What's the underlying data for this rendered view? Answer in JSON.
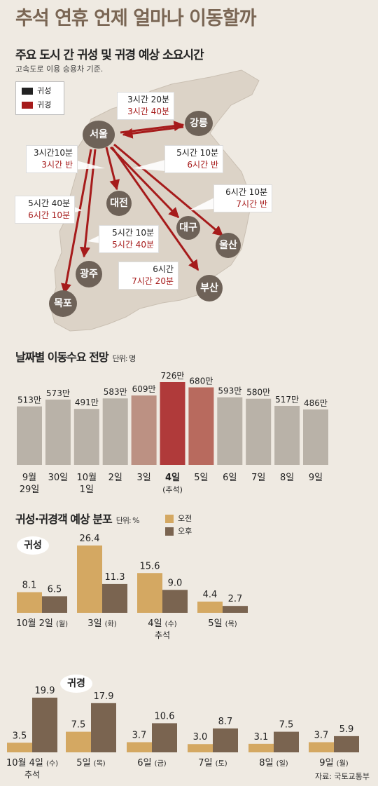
{
  "title": "추석 연휴 언제 얼마나 이동할까",
  "section1": {
    "title": "주요 도시 간 귀성 및 귀경 예상 소요시간",
    "subtitle": "고속도로 이용 승용차 기준.",
    "legend": [
      {
        "label": "귀성",
        "color": "#222222"
      },
      {
        "label": "귀경",
        "color": "#a61b1b"
      }
    ],
    "cities": {
      "seoul": "서울",
      "gangneung": "강릉",
      "daejeon": "대전",
      "daegu": "대구",
      "ulsan": "울산",
      "gwangju": "광주",
      "busan": "부산",
      "mokpo": "목포"
    },
    "routes": [
      {
        "city": "강릉",
        "down": "3시간 20분",
        "up": "3시간 40분"
      },
      {
        "city": "대전",
        "down": "3시간10분",
        "up": "3시간 반"
      },
      {
        "city": "대구",
        "down": "5시간 10분",
        "up": "6시간 반"
      },
      {
        "city": "울산",
        "down": "6시간 10분",
        "up": "7시간 반"
      },
      {
        "city": "목포",
        "down": "5시간 40분",
        "up": "6시간 10분"
      },
      {
        "city": "광주",
        "down": "5시간 10분",
        "up": "5시간 40분"
      },
      {
        "city": "부산",
        "down": "6시간",
        "up": "7시간 20분"
      }
    ]
  },
  "section2": {
    "title": "날짜별 이동수요 전망",
    "unit": "단위: 명"
  },
  "section3": {
    "title": "귀성·귀경객 예상 분포",
    "unit": "단위: %",
    "legend": [
      {
        "label": "오전",
        "color": "#d4a862"
      },
      {
        "label": "오후",
        "color": "#7a6450"
      }
    ],
    "down_label": "귀성",
    "up_label": "귀경"
  },
  "source": "자료: 국토교통부",
  "chart_data": [
    {
      "type": "bar",
      "title": "날짜별 이동수요 전망",
      "unit": "명",
      "categories": [
        "9월 29일",
        "30일",
        "10월 1일",
        "2일",
        "3일",
        "4일 (추석)",
        "5일",
        "6일",
        "7일",
        "8일",
        "9일"
      ],
      "cat_lines": [
        [
          "9월",
          "29일"
        ],
        [
          "30일"
        ],
        [
          "10월",
          "1일"
        ],
        [
          "2일"
        ],
        [
          "3일"
        ],
        [
          "4일",
          "(추석)"
        ],
        [
          "5일"
        ],
        [
          "6일"
        ],
        [
          "7일"
        ],
        [
          "8일"
        ],
        [
          "9일"
        ]
      ],
      "values": [
        513,
        573,
        491,
        583,
        609,
        726,
        680,
        593,
        580,
        517,
        486
      ],
      "value_labels": [
        "513만",
        "573만",
        "491만",
        "583만",
        "609만",
        "726만",
        "680만",
        "593만",
        "580만",
        "517만",
        "486만"
      ],
      "colors": [
        "#b9b2a8",
        "#b9b2a8",
        "#b9b2a8",
        "#b9b2a8",
        "#bc9183",
        "#b03a3a",
        "#b86a5e",
        "#b9b2a8",
        "#b9b2a8",
        "#b9b2a8",
        "#b9b2a8"
      ],
      "ylim": [
        0,
        726
      ]
    },
    {
      "type": "bar",
      "title": "귀성",
      "categories": [
        {
          "date": "10월 2일",
          "day": "(월)",
          "note": ""
        },
        {
          "date": "3일",
          "day": "(화)",
          "note": ""
        },
        {
          "date": "4일",
          "day": "(수)",
          "note": "추석"
        },
        {
          "date": "5일",
          "day": "(목)",
          "note": ""
        }
      ],
      "series": [
        {
          "name": "오전",
          "values": [
            8.1,
            26.4,
            15.6,
            4.4
          ]
        },
        {
          "name": "오후",
          "values": [
            6.5,
            11.3,
            9.0,
            2.7
          ]
        }
      ],
      "value_labels": [
        [
          "8.1",
          "26.4",
          "15.6",
          "4.4"
        ],
        [
          "6.5",
          "11.3",
          "9.0",
          "2.7"
        ]
      ],
      "ylim": [
        0,
        26.4
      ]
    },
    {
      "type": "bar",
      "title": "귀경",
      "categories": [
        {
          "date": "10월 4일",
          "day": "(수)",
          "note": "추석"
        },
        {
          "date": "5일",
          "day": "(목)",
          "note": ""
        },
        {
          "date": "6일",
          "day": "(금)",
          "note": ""
        },
        {
          "date": "7일",
          "day": "(토)",
          "note": ""
        },
        {
          "date": "8일",
          "day": "(일)",
          "note": ""
        },
        {
          "date": "9일",
          "day": "(월)",
          "note": ""
        }
      ],
      "series": [
        {
          "name": "오전",
          "values": [
            3.5,
            7.5,
            3.7,
            3.0,
            3.1,
            3.7
          ]
        },
        {
          "name": "오후",
          "values": [
            19.9,
            17.9,
            10.6,
            8.7,
            7.5,
            5.9
          ]
        }
      ],
      "value_labels": [
        [
          "3.5",
          "7.5",
          "3.7",
          "3.0",
          "3.1",
          "3.7"
        ],
        [
          "19.9",
          "17.9",
          "10.6",
          "8.7",
          "7.5",
          "5.9"
        ]
      ],
      "ylim": [
        0,
        19.9
      ]
    }
  ]
}
